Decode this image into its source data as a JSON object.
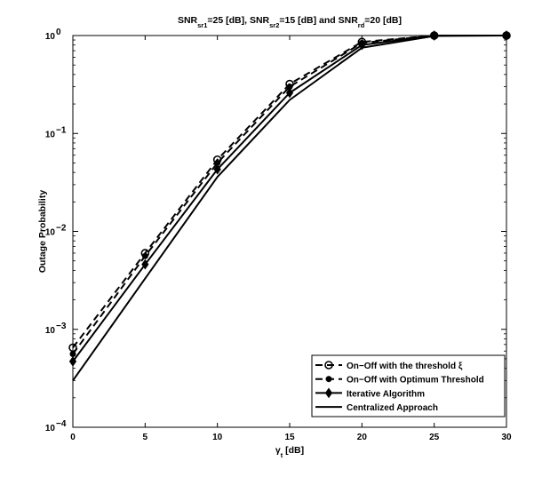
{
  "chart_data": {
    "type": "line",
    "title": "SNR_sr1=25 [dB], SNR_sr2=15 [dB] and SNR_rd=20 [dB]",
    "title_parts": [
      {
        "text": "SNR",
        "sub": "sr1"
      },
      {
        "text": "=25 [dB], SNR",
        "sub": "sr2"
      },
      {
        "text": "=15 [dB] and SNR",
        "sub": "rd"
      },
      {
        "text": "=20 [dB]",
        "sub": ""
      }
    ],
    "xlabel": {
      "main": "γ",
      "sub": "t",
      "rest": " [dB]"
    },
    "ylabel": "Outage Probability",
    "xlim": [
      0,
      30
    ],
    "ylim": [
      0.0001,
      1
    ],
    "yscale": "log",
    "grid": false,
    "legend_position": "bottom-right",
    "x_ticks": [
      0,
      5,
      10,
      15,
      20,
      25,
      30
    ],
    "x_tick_labels": [
      "0",
      "5",
      "10",
      "15",
      "20",
      "25",
      "30"
    ],
    "y_ticks": [
      {
        "value": 0.0001,
        "base": "10",
        "exp": "−4"
      },
      {
        "value": 0.001,
        "base": "10",
        "exp": "−3"
      },
      {
        "value": 0.01,
        "base": "10",
        "exp": "−2"
      },
      {
        "value": 0.1,
        "base": "10",
        "exp": "−1"
      },
      {
        "value": 1,
        "base": "10",
        "exp": "0"
      }
    ],
    "series": [
      {
        "name": "On−Off with the threshold ξ",
        "line": "dashed",
        "marker": "circle-open",
        "x": [
          0,
          5,
          10,
          15,
          20,
          25,
          30
        ],
        "y": [
          0.00065,
          0.006,
          0.054,
          0.32,
          0.86,
          1.0,
          1.0
        ]
      },
      {
        "name": "On−Off with Optimum Threshold",
        "line": "dashed",
        "marker": "dot",
        "x": [
          0,
          5,
          10,
          15,
          20,
          25,
          30
        ],
        "y": [
          0.00056,
          0.0056,
          0.05,
          0.3,
          0.84,
          1.0,
          1.0
        ]
      },
      {
        "name": "Iterative Algorithm",
        "line": "solid",
        "marker": "diamond",
        "x": [
          0,
          5,
          10,
          15,
          20,
          25,
          30
        ],
        "y": [
          0.00047,
          0.0046,
          0.043,
          0.26,
          0.8,
          1.0,
          1.0
        ]
      },
      {
        "name": "Centralized Approach",
        "line": "solid",
        "marker": "none",
        "x": [
          0,
          5,
          10,
          15,
          20,
          25,
          30
        ],
        "y": [
          0.0003,
          0.0033,
          0.036,
          0.22,
          0.75,
          0.99,
          1.0
        ]
      }
    ]
  }
}
